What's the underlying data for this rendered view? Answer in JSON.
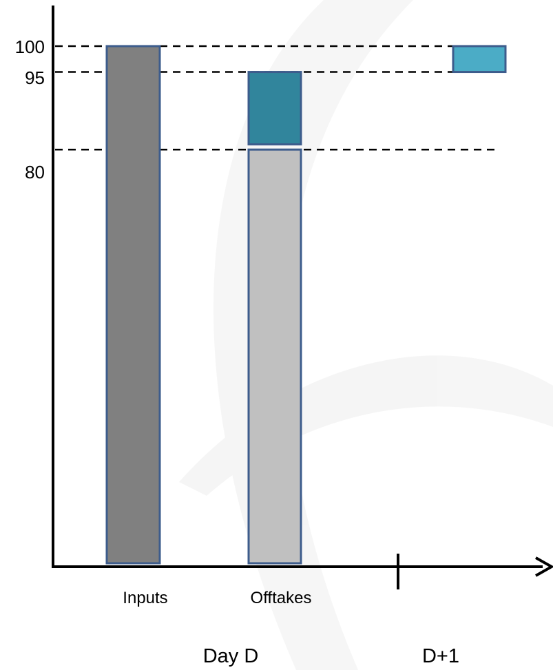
{
  "chart_data": {
    "type": "bar",
    "ytick_labels": [
      "100",
      "95",
      "80"
    ],
    "reference_lines": [
      100,
      95,
      80
    ],
    "categories": [
      "Inputs",
      "Offtakes"
    ],
    "periods": [
      "Day D",
      "D+1"
    ],
    "bars": [
      {
        "category": "Inputs",
        "period": "Day D",
        "bottom": 0,
        "top": 100,
        "color": "#808080"
      },
      {
        "category": "Offtakes",
        "period": "Day D",
        "bottom": 0,
        "top": 80,
        "color": "#c0c0c0"
      },
      {
        "category": "Offtakes",
        "period": "Day D",
        "bottom": 81,
        "top": 95,
        "color": "#31859c"
      },
      {
        "category": "",
        "period": "D+1",
        "bottom": 95,
        "top": 100,
        "color": "#4bacc6"
      }
    ],
    "ylim": [
      0,
      100
    ],
    "grid": false,
    "colors": {
      "axis": "#000000",
      "bar_border": "#3d5c8c",
      "dashed_line": "#000000"
    }
  }
}
